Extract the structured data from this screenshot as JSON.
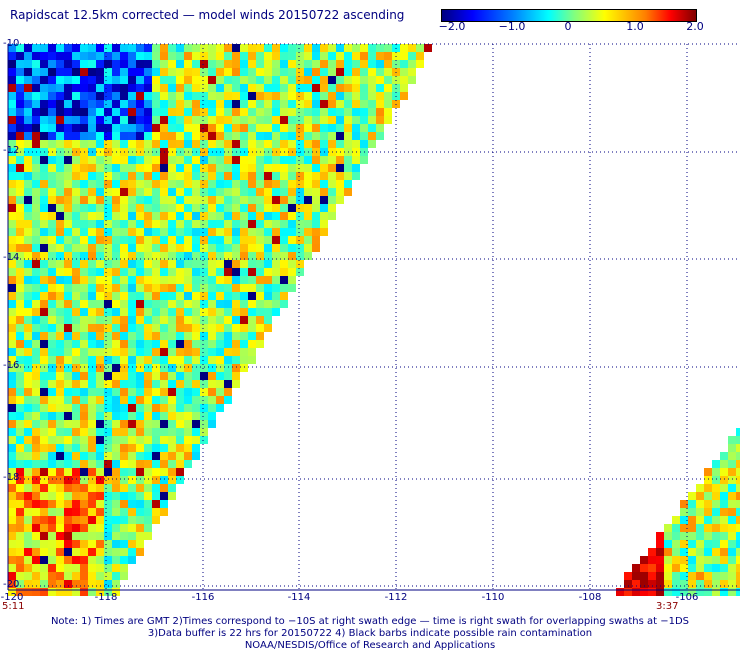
{
  "title": "Rapidscat 12.5km corrected — model winds 20150722 ascending",
  "colorbar": {
    "ticks": [
      "−2.0",
      "−1.0",
      "0",
      "1.0",
      "2.0"
    ],
    "tick_values": [
      -2.0,
      -1.0,
      0,
      1.0,
      2.0
    ],
    "colors": [
      "#00007f",
      "#0000ff",
      "#0080ff",
      "#00ffff",
      "#80ff80",
      "#ffff00",
      "#ff8000",
      "#ff0000",
      "#7f0000"
    ]
  },
  "map": {
    "lon_range": [
      -120,
      -104.7
    ],
    "lat_labels": [
      "-10",
      "-12",
      "-14",
      "-16",
      "-18",
      "-20"
    ],
    "lat_values": [
      -10,
      -12,
      -14,
      -16,
      -18,
      -20
    ],
    "lon_labels": [
      "-120",
      "-118",
      "-116",
      "-114",
      "-112",
      "-110",
      "-108",
      "-106"
    ],
    "lon_values": [
      -120,
      -118,
      -116,
      -114,
      -112,
      -110,
      -108,
      -106
    ],
    "grid": "dotted"
  },
  "swath_times": {
    "left": "5:11",
    "right": "3:37"
  },
  "notes": [
    "Note: 1) Times are GMT 2)Times correspond to −10S at right swath edge — time is right swath for overlapping swaths at −1DS",
    "3)Data buffer is 22 hrs for 20150722 4) Black barbs indicate possible rain contamination",
    "NOAA/NESDIS/Office of Research and Applications"
  ]
}
